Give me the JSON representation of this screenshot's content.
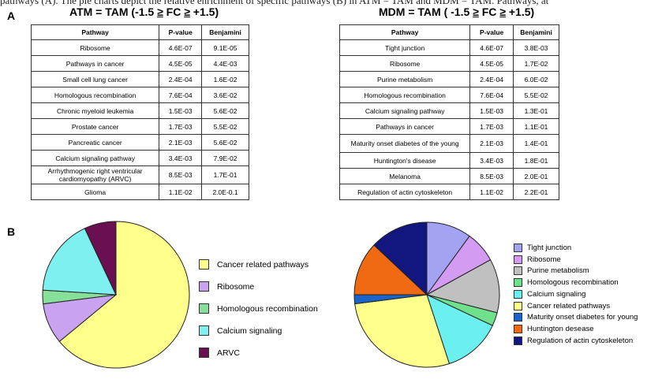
{
  "top_text": "pathways (A). The pie charts depict the relative enrichment of specific pathways (B) in ATM = TAM and MDM = TAM. Pathways, at",
  "panels": {
    "a": "A",
    "b": "B"
  },
  "left_table": {
    "title_prefix": "ATM = TAM  (-1.5 ",
    "ge1": "≥",
    "title_mid": " FC ",
    "ge2": "≥",
    "title_suffix": " +1.5)",
    "headers": [
      "Pathway",
      "P-value",
      "Benjamini"
    ],
    "rows": [
      [
        "Ribosome",
        "4.6E-07",
        "9.1E-05"
      ],
      [
        "Pathways in cancer",
        "4.5E-05",
        "4.4E-03"
      ],
      [
        "Small cell lung cancer",
        "2.4E-04",
        "1.6E-02"
      ],
      [
        "Homologous recombination",
        "7.6E-04",
        "3.6E-02"
      ],
      [
        "Chronic myeloid leukemia",
        "1.5E-03",
        "5.6E-02"
      ],
      [
        "Prostate cancer",
        "1.7E-03",
        "5.5E-02"
      ],
      [
        "Pancreatic cancer",
        "2.1E-03",
        "5.6E-02"
      ],
      [
        "Calcium signaling pathway",
        "3.4E-03",
        "7.9E-02"
      ],
      [
        "Arrhythmogenic right ventricular cardiomyopathy (ARVC)",
        "8.5E-03",
        "1.7E-01"
      ],
      [
        "Glioma",
        "1.1E-02",
        "2.0E-0.1"
      ]
    ]
  },
  "right_table": {
    "title_prefix": "MDM = TAM  ( -1.5 ",
    "ge1": "≥",
    "title_mid": "  FC ",
    "ge2": "≥",
    "title_suffix": " +1.5)",
    "headers": [
      "Pathway",
      "P-value",
      "Benjamini"
    ],
    "rows": [
      [
        "Tight junction",
        "4.6E-07",
        "3.8E-03"
      ],
      [
        "Ribosome",
        "4.5E-05",
        "1.7E-02"
      ],
      [
        "Purine metabolism",
        "2.4E-04",
        "6.0E-02"
      ],
      [
        "Homologous recombination",
        "7.6E-04",
        "5.5E-02"
      ],
      [
        "Calcium signaling pathway",
        "1.5E-03",
        "1.3E-01"
      ],
      [
        "Pathways in cancer",
        "1.7E-03",
        "1.1E-01"
      ],
      [
        "Maturity onset diabetes of the young",
        "2.1E-03",
        "1.4E-01"
      ],
      [
        "Huntington's disease",
        "3.4E-03",
        "1.8E-01"
      ],
      [
        "Melanoma",
        "8.5E-03",
        "2.0E-01"
      ],
      [
        "Regulation of actin cytoskeleton",
        "1.1E-02",
        "2.2E-01"
      ]
    ]
  },
  "chart_data": [
    {
      "type": "pie",
      "slices": [
        {
          "label": "Cancer related pathways",
          "value": 64,
          "color": "#ffff8c"
        },
        {
          "label": "Ribosome",
          "value": 9,
          "color": "#c9a3ef"
        },
        {
          "label": "Homologous recombination",
          "value": 3,
          "color": "#86e09a"
        },
        {
          "label": "Calcium signaling",
          "value": 17,
          "color": "#7ef0f0"
        },
        {
          "label": "ARVC",
          "value": 7,
          "color": "#6a0f52"
        }
      ]
    },
    {
      "type": "pie",
      "slices": [
        {
          "label": "Tight junction",
          "value": 10,
          "color": "#a3a3f2"
        },
        {
          "label": "Ribosome",
          "value": 7,
          "color": "#d39cf2"
        },
        {
          "label": "Purine metabolism",
          "value": 12,
          "color": "#c0c0c0"
        },
        {
          "label": "Homologous recombination",
          "value": 3,
          "color": "#6fe08c"
        },
        {
          "label": "Calcium signaling",
          "value": 13,
          "color": "#6cefef"
        },
        {
          "label": "Cancer related pathways",
          "value": 28,
          "color": "#ffff8c"
        },
        {
          "label": "Maturity onset diabetes for young",
          "value": 2,
          "color": "#1b63c6"
        },
        {
          "label": "Huntington desease",
          "value": 12,
          "color": "#ef6a12"
        },
        {
          "label": "Regulation of actin cytoskeleton",
          "value": 13,
          "color": "#12177f"
        }
      ]
    }
  ]
}
